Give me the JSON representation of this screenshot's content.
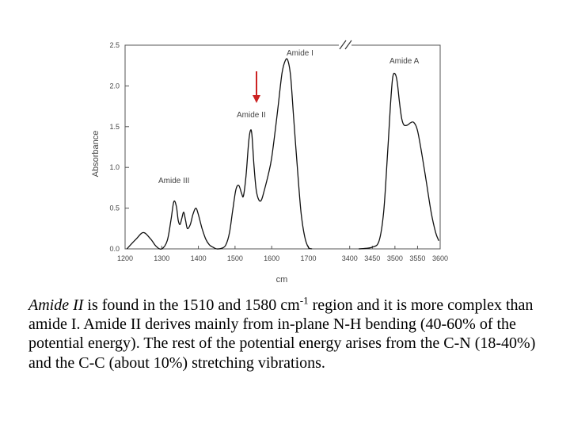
{
  "chart_data": {
    "type": "line",
    "ylabel": "Absorbance",
    "xlabel": "cm",
    "y_ticks": [
      "0.0",
      "0.5",
      "1.0",
      "1.5",
      "2.0",
      "2.5"
    ],
    "y_tick_values": [
      0,
      0.5,
      1.0,
      1.5,
      2.0,
      2.5
    ],
    "ylim": [
      0,
      2.5
    ],
    "x_ticks_left": [
      "1200",
      "1300",
      "1400",
      "1500",
      "1600",
      "1700"
    ],
    "x_ticks_right": [
      "3400",
      "3450",
      "3500",
      "3550",
      "3600"
    ],
    "xlim_left": [
      1200,
      1740
    ],
    "xlim_right": [
      3390,
      3600
    ],
    "axis_break": "//",
    "line_color": "#111111",
    "arrow_color": "#cc2222",
    "annotations": {
      "amide_i": "Amide I",
      "amide_ii": "Amide II",
      "amide_iii": "Amide III",
      "amide_a": "Amide A"
    },
    "series_left": [
      [
        1205,
        0.0
      ],
      [
        1230,
        0.12
      ],
      [
        1250,
        0.2
      ],
      [
        1270,
        0.12
      ],
      [
        1285,
        0.03
      ],
      [
        1300,
        0.0
      ],
      [
        1315,
        0.1
      ],
      [
        1325,
        0.35
      ],
      [
        1333,
        0.58
      ],
      [
        1340,
        0.52
      ],
      [
        1345,
        0.35
      ],
      [
        1350,
        0.3
      ],
      [
        1355,
        0.38
      ],
      [
        1360,
        0.45
      ],
      [
        1365,
        0.35
      ],
      [
        1370,
        0.25
      ],
      [
        1378,
        0.3
      ],
      [
        1385,
        0.42
      ],
      [
        1393,
        0.5
      ],
      [
        1400,
        0.42
      ],
      [
        1410,
        0.25
      ],
      [
        1420,
        0.12
      ],
      [
        1430,
        0.05
      ],
      [
        1440,
        0.02
      ],
      [
        1450,
        0.0
      ],
      [
        1465,
        0.01
      ],
      [
        1475,
        0.05
      ],
      [
        1485,
        0.2
      ],
      [
        1493,
        0.45
      ],
      [
        1502,
        0.72
      ],
      [
        1510,
        0.78
      ],
      [
        1518,
        0.68
      ],
      [
        1523,
        0.65
      ],
      [
        1530,
        0.9
      ],
      [
        1537,
        1.3
      ],
      [
        1542,
        1.45
      ],
      [
        1546,
        1.4
      ],
      [
        1552,
        1.0
      ],
      [
        1558,
        0.72
      ],
      [
        1565,
        0.6
      ],
      [
        1572,
        0.6
      ],
      [
        1580,
        0.72
      ],
      [
        1590,
        0.9
      ],
      [
        1600,
        1.12
      ],
      [
        1615,
        1.65
      ],
      [
        1628,
        2.15
      ],
      [
        1638,
        2.32
      ],
      [
        1645,
        2.3
      ],
      [
        1652,
        2.1
      ],
      [
        1660,
        1.6
      ],
      [
        1670,
        1.0
      ],
      [
        1680,
        0.45
      ],
      [
        1690,
        0.15
      ],
      [
        1700,
        0.02
      ],
      [
        1710,
        0.0
      ]
    ],
    "series_right": [
      [
        3420,
        0.0
      ],
      [
        3450,
        0.02
      ],
      [
        3465,
        0.1
      ],
      [
        3475,
        0.45
      ],
      [
        3483,
        1.1
      ],
      [
        3490,
        1.75
      ],
      [
        3495,
        2.1
      ],
      [
        3500,
        2.15
      ],
      [
        3505,
        2.05
      ],
      [
        3510,
        1.8
      ],
      [
        3515,
        1.6
      ],
      [
        3520,
        1.52
      ],
      [
        3528,
        1.52
      ],
      [
        3535,
        1.55
      ],
      [
        3542,
        1.55
      ],
      [
        3550,
        1.45
      ],
      [
        3560,
        1.15
      ],
      [
        3570,
        0.8
      ],
      [
        3580,
        0.45
      ],
      [
        3590,
        0.2
      ],
      [
        3597,
        0.1
      ]
    ]
  },
  "caption": {
    "lead": "Amide II",
    "part1": " is found in the 1510 and 1580 cm",
    "superscript": "-1",
    "part2": " region and it is more complex than amide I. Amide II derives mainly from in-plane N-H bending (40-60% of the potential energy). The rest of the potential energy arises from the C-N (18-40%) and the C-C (about 10%) stretching vibrations."
  }
}
